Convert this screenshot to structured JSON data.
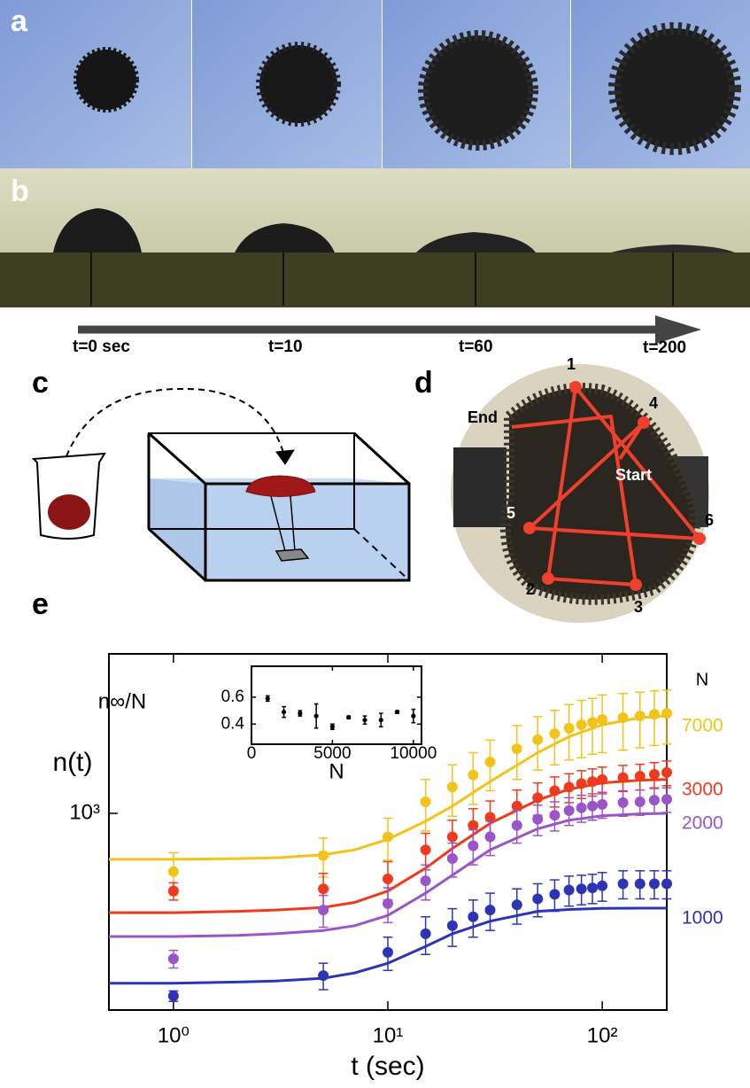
{
  "panels": {
    "a": {
      "label": "a"
    },
    "b": {
      "label": "b"
    },
    "c": {
      "label": "c"
    },
    "d": {
      "label": "d",
      "points": [
        "1",
        "2",
        "3",
        "4",
        "5",
        "6"
      ],
      "end": "End",
      "start": "Start"
    },
    "e": {
      "label": "e"
    }
  },
  "timeline": [
    "t=0 sec",
    "t=10",
    "t=60",
    "t=200"
  ],
  "chart_data": [
    {
      "type": "scatter",
      "xlabel": "t (sec)",
      "ylabel": "n(t)",
      "xscale": "log",
      "yscale": "log",
      "xlim": [
        0.5,
        200
      ],
      "ylim": [
        125,
        5400
      ],
      "xticks": [
        {
          "value": 1,
          "label": "10⁰"
        },
        {
          "value": 10,
          "label": "10¹"
        },
        {
          "value": 100,
          "label": "10²"
        }
      ],
      "yticks": [
        {
          "value": 1000,
          "label": "10³"
        }
      ],
      "legend_title": "N",
      "legend": "right",
      "x": [
        1,
        5,
        10,
        15,
        20,
        25,
        30,
        40,
        50,
        60,
        70,
        80,
        90,
        100,
        125,
        150,
        175,
        200
      ],
      "fit_x": [
        0.5,
        1,
        2,
        3,
        5,
        7,
        10,
        15,
        20,
        30,
        50,
        70,
        100,
        150,
        200
      ],
      "series": [
        {
          "name": "7000",
          "color": "#f2c31a",
          "values": [
            540,
            640,
            780,
            1130,
            1320,
            1500,
            1720,
            1980,
            2180,
            2320,
            2460,
            2550,
            2620,
            2700,
            2750,
            2800,
            2850,
            2880
          ],
          "errors": [
            120,
            130,
            170,
            300,
            350,
            400,
            450,
            550,
            600,
            650,
            700,
            750,
            750,
            800,
            800,
            800,
            800,
            800
          ],
          "fit": [
            615,
            615,
            620,
            625,
            645,
            680,
            760,
            920,
            1080,
            1400,
            1900,
            2250,
            2550,
            2750,
            2800
          ]
        },
        {
          "name": "3000",
          "color": "#ee3a1d",
          "values": [
            440,
            450,
            500,
            680,
            780,
            880,
            960,
            1080,
            1180,
            1270,
            1320,
            1370,
            1400,
            1430,
            1460,
            1480,
            1510,
            1540
          ],
          "errors": [
            40,
            80,
            100,
            130,
            150,
            170,
            180,
            200,
            200,
            200,
            200,
            200,
            200,
            200,
            200,
            200,
            200,
            200
          ],
          "fit": [
            350,
            350,
            355,
            360,
            370,
            390,
            440,
            560,
            690,
            900,
            1150,
            1290,
            1380,
            1420,
            1430
          ]
        },
        {
          "name": "2000",
          "color": "#9a55c9",
          "values": [
            215,
            360,
            385,
            490,
            620,
            710,
            780,
            880,
            940,
            980,
            1030,
            1060,
            1080,
            1100,
            1120,
            1130,
            1150,
            1160
          ],
          "errors": [
            20,
            60,
            70,
            90,
            110,
            130,
            140,
            150,
            150,
            150,
            150,
            150,
            150,
            150,
            150,
            150,
            150,
            150
          ],
          "fit": [
            272,
            272,
            275,
            280,
            290,
            305,
            340,
            430,
            520,
            680,
            850,
            930,
            975,
            995,
            1000
          ]
        },
        {
          "name": "1000",
          "color": "#2e35b5",
          "values": [
            145,
            180,
            230,
            280,
            305,
            335,
            360,
            380,
            405,
            425,
            445,
            450,
            455,
            465,
            475,
            475,
            475,
            475
          ],
          "errors": [
            8,
            25,
            40,
            55,
            60,
            65,
            70,
            70,
            70,
            70,
            70,
            70,
            70,
            70,
            70,
            70,
            70,
            70
          ],
          "fit": [
            166,
            166,
            168,
            170,
            175,
            185,
            205,
            245,
            280,
            320,
            355,
            362,
            366,
            367,
            367
          ]
        }
      ]
    },
    {
      "type": "scatter",
      "xlabel": "N",
      "ylabel": "n∞/N",
      "color": "#000000",
      "xlim": [
        0,
        10500
      ],
      "ylim": [
        0.25,
        0.83
      ],
      "xticks": [
        0,
        5000,
        10000
      ],
      "yticks": [
        0.4,
        0.6
      ],
      "x": [
        1000,
        2000,
        3000,
        4000,
        5000,
        6000,
        7000,
        8000,
        9000,
        10000
      ],
      "values": [
        0.59,
        0.49,
        0.48,
        0.46,
        0.38,
        0.45,
        0.43,
        0.43,
        0.49,
        0.46
      ],
      "errors": [
        0.02,
        0.04,
        0.02,
        0.09,
        0.02,
        0.01,
        0.03,
        0.05,
        0.01,
        0.05
      ]
    }
  ]
}
